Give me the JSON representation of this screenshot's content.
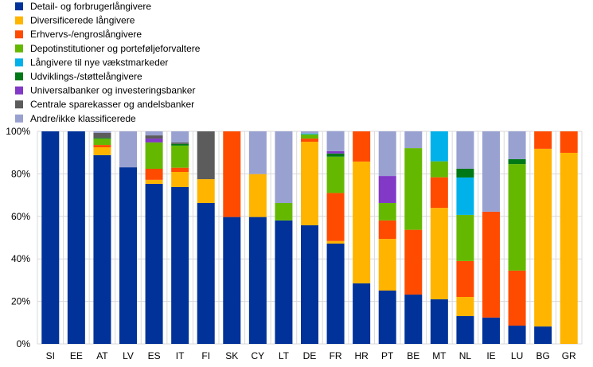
{
  "chart_data": {
    "type": "bar",
    "stacked": true,
    "title": "",
    "xlabel": "",
    "ylabel": "",
    "ylim": [
      0,
      100
    ],
    "yticks": [
      "0%",
      "20%",
      "40%",
      "60%",
      "80%",
      "100%"
    ],
    "grid": true,
    "legend_position": "top-left",
    "categories": [
      "SI",
      "EE",
      "AT",
      "LV",
      "ES",
      "IT",
      "FI",
      "SK",
      "CY",
      "LT",
      "DE",
      "FR",
      "HR",
      "PT",
      "BE",
      "MT",
      "NL",
      "IE",
      "LU",
      "BG",
      "GR"
    ],
    "series": [
      {
        "name": "Detail- og forbrugerlångivere",
        "color": "#003299",
        "values": [
          100,
          100,
          88.8,
          83.1,
          75.3,
          73.8,
          66.3,
          59.7,
          59.7,
          58.1,
          55.8,
          47.2,
          28.5,
          25.1,
          23.2,
          21.0,
          13.1,
          12.4,
          8.6,
          8.2,
          0
        ]
      },
      {
        "name": "Diversificerede långivere",
        "color": "#FFB400",
        "values": [
          0,
          0,
          3.7,
          0,
          1.9,
          7.1,
          11.2,
          0,
          20.2,
          0,
          39.3,
          1.2,
          57.3,
          24.3,
          0,
          43.0,
          9.0,
          0,
          0,
          83.6,
          89.9
        ]
      },
      {
        "name": "Erhvervs-/engroslångivere",
        "color": "#FF4B00",
        "values": [
          0,
          0,
          1.1,
          0,
          5.2,
          2.0,
          0,
          40.3,
          0,
          0,
          1.5,
          22.6,
          14.2,
          8.7,
          30.5,
          14.4,
          16.9,
          49.8,
          25.9,
          8.2,
          10.1
        ]
      },
      {
        "name": "Depotinstitutioner og porteføljeforvaltere",
        "color": "#65B800",
        "values": [
          0,
          0,
          2.9,
          0,
          12.4,
          10.4,
          0,
          0,
          0,
          8.2,
          2.0,
          17.1,
          0,
          8.2,
          38.4,
          7.5,
          21.7,
          0,
          50.1,
          0,
          0
        ]
      },
      {
        "name": "Långivere til nye vækstmarkeder",
        "color": "#00B1EA",
        "values": [
          0,
          0,
          0,
          0,
          0,
          0,
          0,
          0,
          0,
          0,
          0.4,
          0,
          0,
          0,
          0,
          14.1,
          17.6,
          0,
          0,
          0,
          0
        ]
      },
      {
        "name": "Udviklings-/støttelångivere",
        "color": "#007816",
        "values": [
          0,
          0,
          0.4,
          0,
          0,
          0.8,
          0,
          0,
          0,
          0,
          0,
          1.5,
          0,
          0,
          0,
          0,
          4.1,
          0,
          2.3,
          0,
          0
        ]
      },
      {
        "name": "Universalbanker og investeringsbanker",
        "color": "#8139C6",
        "values": [
          0,
          0,
          0,
          0,
          1.8,
          0,
          0,
          0,
          0,
          0,
          0,
          1.1,
          0,
          12.7,
          0,
          0,
          0,
          0,
          0,
          0,
          0
        ]
      },
      {
        "name": "Centrale sparekasser og andelsbanker",
        "color": "#5C5C5C",
        "values": [
          0,
          0,
          2.4,
          0,
          1.5,
          0.7,
          22.5,
          0,
          0,
          0,
          0,
          0,
          0,
          0,
          0,
          0,
          0,
          0,
          0,
          0,
          0
        ]
      },
      {
        "name": "Andre/ikke klassificerede",
        "color": "#98A1D0",
        "values": [
          0,
          0,
          0.7,
          16.9,
          1.9,
          5.2,
          0,
          0,
          20.1,
          33.7,
          1.0,
          9.4,
          0,
          21.0,
          7.9,
          0,
          17.6,
          37.8,
          13.1,
          0,
          0
        ]
      }
    ]
  }
}
